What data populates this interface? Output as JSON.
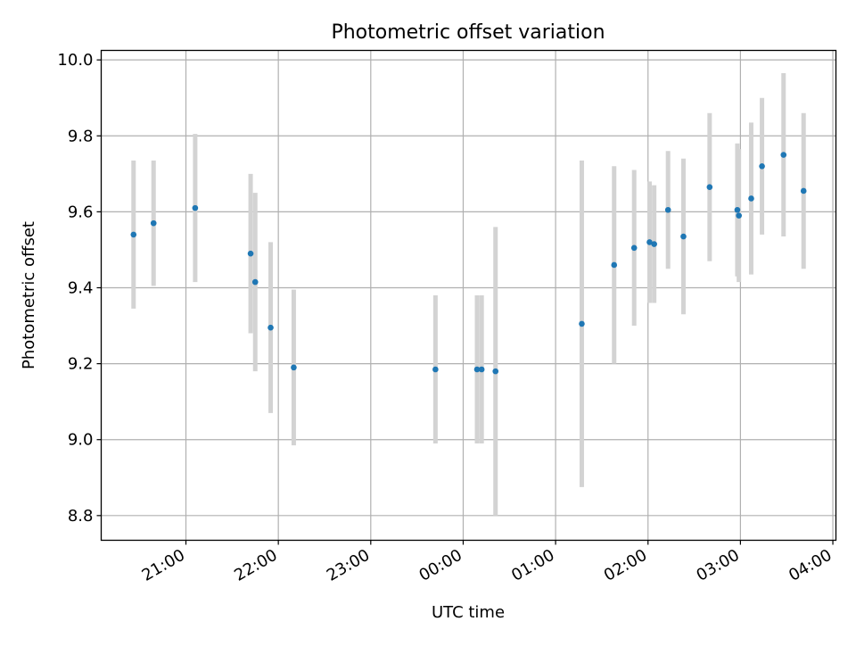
{
  "chart_data": {
    "type": "scatter",
    "title": "Photometric offset variation",
    "xlabel": "UTC time",
    "ylabel": "Photometric offset",
    "x_axis_kind": "time",
    "x_origin_note": "times run from evening through midnight into next morning",
    "xlim": [
      "20:05",
      "04:02"
    ],
    "ylim": [
      8.735,
      10.025
    ],
    "xticks": [
      "21:00",
      "22:00",
      "23:00",
      "00:00",
      "01:00",
      "02:00",
      "03:00",
      "04:00"
    ],
    "yticks": [
      "8.8",
      "9.0",
      "9.2",
      "9.4",
      "9.6",
      "9.8",
      "10.0"
    ],
    "grid": true,
    "marker_color": "#1f77b4",
    "errorbar_color": "#d3d3d3",
    "points": [
      {
        "time": "20:26",
        "y": 9.54,
        "err": 0.195
      },
      {
        "time": "20:39",
        "y": 9.57,
        "err": 0.165
      },
      {
        "time": "21:06",
        "y": 9.61,
        "err": 0.195
      },
      {
        "time": "21:42",
        "y": 9.49,
        "err": 0.21
      },
      {
        "time": "21:45",
        "y": 9.415,
        "err": 0.235
      },
      {
        "time": "21:55",
        "y": 9.295,
        "err": 0.225
      },
      {
        "time": "22:10",
        "y": 9.19,
        "err": 0.205
      },
      {
        "time": "23:42",
        "y": 9.185,
        "err": 0.195
      },
      {
        "time": "00:09",
        "y": 9.185,
        "err": 0.195
      },
      {
        "time": "00:12",
        "y": 9.185,
        "err": 0.195
      },
      {
        "time": "00:21",
        "y": 9.18,
        "err": 0.38
      },
      {
        "time": "01:17",
        "y": 9.305,
        "err": 0.43
      },
      {
        "time": "01:38",
        "y": 9.46,
        "err": 0.26
      },
      {
        "time": "01:51",
        "y": 9.505,
        "err": 0.205
      },
      {
        "time": "02:01",
        "y": 9.52,
        "err": 0.16
      },
      {
        "time": "02:04",
        "y": 9.515,
        "err": 0.155
      },
      {
        "time": "02:13",
        "y": 9.605,
        "err": 0.155
      },
      {
        "time": "02:23",
        "y": 9.535,
        "err": 0.205
      },
      {
        "time": "02:40",
        "y": 9.665,
        "err": 0.195
      },
      {
        "time": "02:58",
        "y": 9.605,
        "err": 0.175
      },
      {
        "time": "02:59",
        "y": 9.59,
        "err": 0.175
      },
      {
        "time": "03:07",
        "y": 9.635,
        "err": 0.2
      },
      {
        "time": "03:14",
        "y": 9.72,
        "err": 0.18
      },
      {
        "time": "03:28",
        "y": 9.75,
        "err": 0.215
      },
      {
        "time": "03:41",
        "y": 9.655,
        "err": 0.205
      }
    ]
  }
}
